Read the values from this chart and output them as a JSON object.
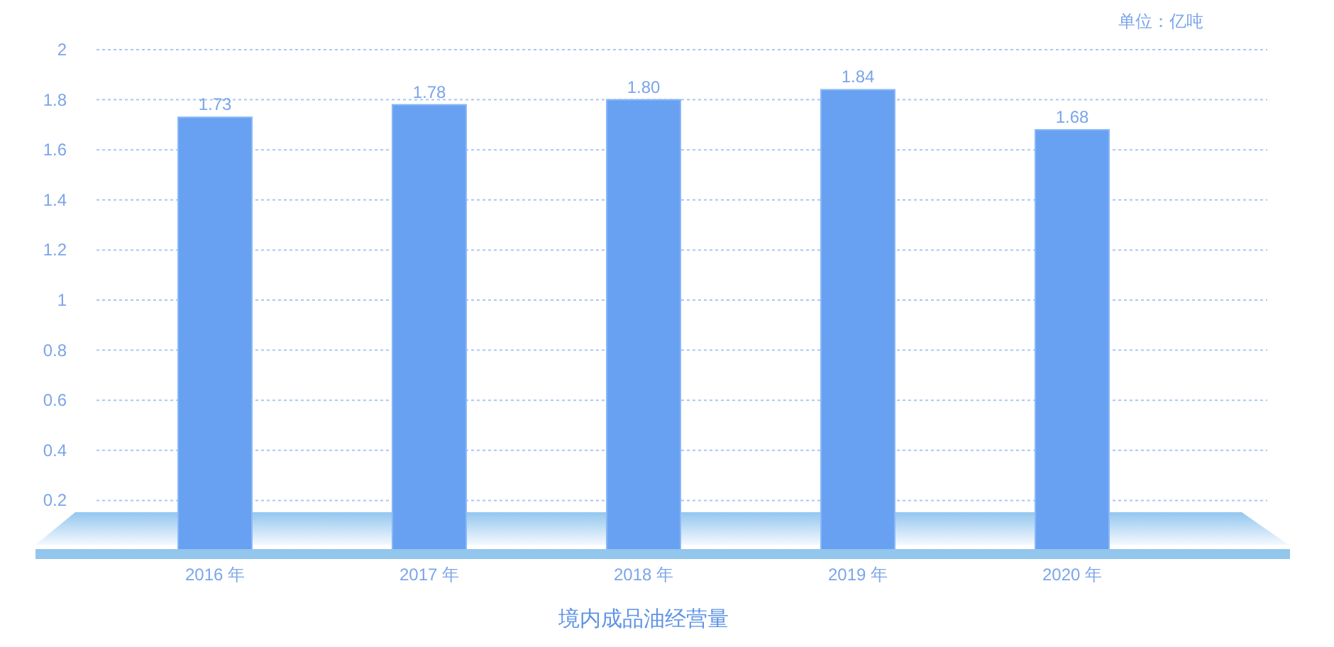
{
  "chart_data": {
    "type": "bar",
    "title": "境内成品油经营量",
    "ylabel": "单位：亿吨",
    "categories": [
      "2016 年",
      "2017 年",
      "2018 年",
      "2019 年",
      "2020 年"
    ],
    "values": [
      1.73,
      1.78,
      1.8,
      1.84,
      1.68
    ],
    "value_labels": [
      "1.73",
      "1.78",
      "1.80",
      "1.84",
      "1.68"
    ],
    "color": "#68a1f2",
    "ylim": [
      0,
      2
    ],
    "yticks": [
      0.2,
      0.4,
      0.6,
      0.8,
      1,
      1.2,
      1.4,
      1.6,
      1.8,
      2
    ],
    "grid": "y"
  }
}
